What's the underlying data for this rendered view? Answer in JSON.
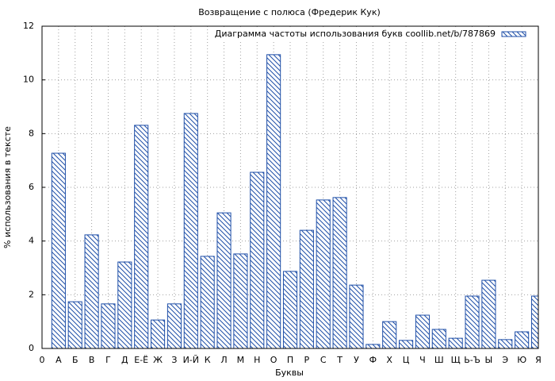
{
  "chart_data": {
    "type": "bar",
    "title": "Возвращение с полюса (Фредерик Кук)",
    "x_label": "Буквы",
    "y_label": "% использования в тексте",
    "x": [
      1,
      2,
      3,
      4,
      5,
      6,
      7,
      8,
      9,
      10,
      11,
      12,
      13,
      14,
      15,
      16,
      17,
      18,
      19,
      20,
      21,
      22,
      23,
      24,
      25,
      26,
      27,
      28,
      29,
      30
    ],
    "series": [
      {
        "name": "Диаграмма частоты использования букв coollib.net/b/787869",
        "color": "#1f4fa8",
        "values": [
          7.27,
          1.74,
          4.23,
          1.66,
          3.22,
          8.31,
          1.06,
          1.66,
          8.75,
          3.43,
          5.05,
          3.52,
          6.56,
          10.94,
          2.87,
          4.4,
          5.53,
          5.62,
          2.36,
          0.15,
          1.0,
          0.3,
          1.24,
          0.71,
          0.38,
          1.95,
          2.54,
          0.33,
          0.62,
          1.95
        ]
      }
    ],
    "xlim": [
      0,
      30
    ],
    "xticks": [
      0,
      {
        "value": 1,
        "label": "А"
      },
      {
        "value": 2,
        "label": "Б"
      },
      {
        "value": 3,
        "label": "В"
      },
      {
        "value": 4,
        "label": "Г"
      },
      {
        "value": 5,
        "label": "Д"
      },
      {
        "value": 6,
        "label": "Е-Ё"
      },
      {
        "value": 7,
        "label": "Ж"
      },
      {
        "value": 8,
        "label": "З"
      },
      {
        "value": 9,
        "label": "И-Й"
      },
      {
        "value": 10,
        "label": "К"
      },
      {
        "value": 11,
        "label": "Л"
      },
      {
        "value": 12,
        "label": "М"
      },
      {
        "value": 13,
        "label": "Н"
      },
      {
        "value": 14,
        "label": "О"
      },
      {
        "value": 15,
        "label": "П"
      },
      {
        "value": 16,
        "label": "Р"
      },
      {
        "value": 17,
        "label": "С"
      },
      {
        "value": 18,
        "label": "Т"
      },
      {
        "value": 19,
        "label": "У"
      },
      {
        "value": 20,
        "label": "Ф"
      },
      {
        "value": 21,
        "label": "Х"
      },
      {
        "value": 22,
        "label": "Ц"
      },
      {
        "value": 23,
        "label": "Ч"
      },
      {
        "value": 24,
        "label": "Ш"
      },
      {
        "value": 25,
        "label": "Щ"
      },
      {
        "value": 26,
        "label": "Ь-Ъ"
      },
      {
        "value": 27,
        "label": "Ы"
      },
      {
        "value": 28,
        "label": "Э"
      },
      {
        "value": 29,
        "label": "Ю"
      },
      {
        "value": 30,
        "label": "Я"
      }
    ],
    "ylim": [
      0,
      12
    ],
    "yticks": [
      0,
      2,
      4,
      6,
      8,
      10,
      12
    ],
    "grid": true,
    "legend": "top-right"
  }
}
